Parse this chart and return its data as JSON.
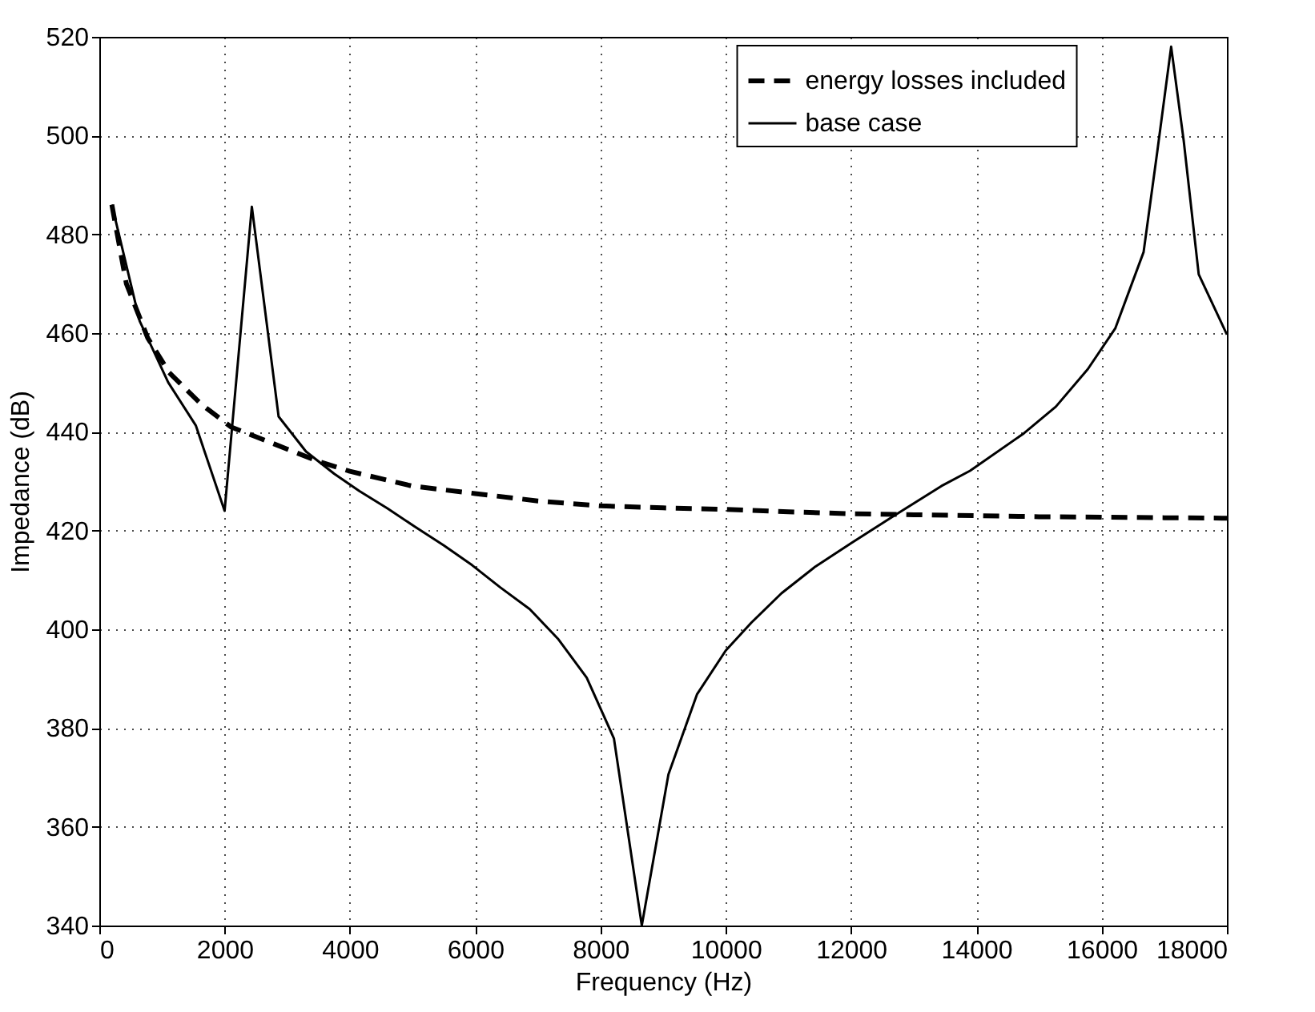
{
  "chart_data": {
    "type": "line",
    "xlabel": "Frequency (Hz)",
    "ylabel": "Impedance (dB)",
    "xlim": [
      0,
      18000
    ],
    "xticks": [
      0,
      2000,
      4000,
      6000,
      8000,
      10000,
      12000,
      14000,
      16000,
      18000
    ],
    "ylim": [
      340,
      520
    ],
    "yticks": [
      340,
      360,
      380,
      400,
      420,
      440,
      460,
      480,
      500,
      520
    ],
    "grid": true,
    "legend": "top right",
    "marker": "none",
    "series": [
      {
        "name": "energy losses included",
        "color": "#000000",
        "line_style": "dashed",
        "x": [
          200,
          432,
          773,
          1115,
          1627,
          2100,
          2500,
          3000,
          3500,
          4000,
          5000,
          6000,
          7000,
          8000,
          9000,
          10000,
          11000,
          12000,
          13000,
          14000,
          15000,
          16000,
          17000,
          18000
        ],
        "values": [
          486,
          470,
          459,
          452,
          445.6,
          441,
          439,
          436.5,
          434,
          432,
          429,
          427.5,
          426,
          425,
          424.6,
          424.3,
          423.8,
          423.4,
          423.2,
          423,
          422.8,
          422.7,
          422.6,
          422.5
        ]
      },
      {
        "name": "base case",
        "color": "#000000",
        "line_style": "solid",
        "x": [
          200,
          645,
          1100,
          1540,
          2000,
          2435,
          2862,
          3300,
          3750,
          4150,
          4600,
          5036,
          5500,
          5950,
          6400,
          6870,
          7320,
          7780,
          8215,
          8660,
          9085,
          9540,
          10000,
          10405,
          10890,
          11430,
          12010,
          12710,
          13440,
          13900,
          14760,
          15270,
          15780,
          16220,
          16670,
          16890,
          17110,
          17310,
          17550,
          18000
        ],
        "values": [
          486,
          462.4,
          450,
          441.3,
          424,
          485.6,
          443.1,
          436,
          431.5,
          428,
          424.5,
          420.8,
          417,
          413,
          408.5,
          404.1,
          398.1,
          390.2,
          377.9,
          340,
          370.6,
          386.8,
          395.7,
          401.3,
          407.3,
          412.7,
          417.5,
          423.2,
          429,
          432.1,
          439.7,
          445.1,
          452.7,
          461,
          476.4,
          496.9,
          518,
          499,
          471.9,
          459.7
        ]
      }
    ]
  }
}
